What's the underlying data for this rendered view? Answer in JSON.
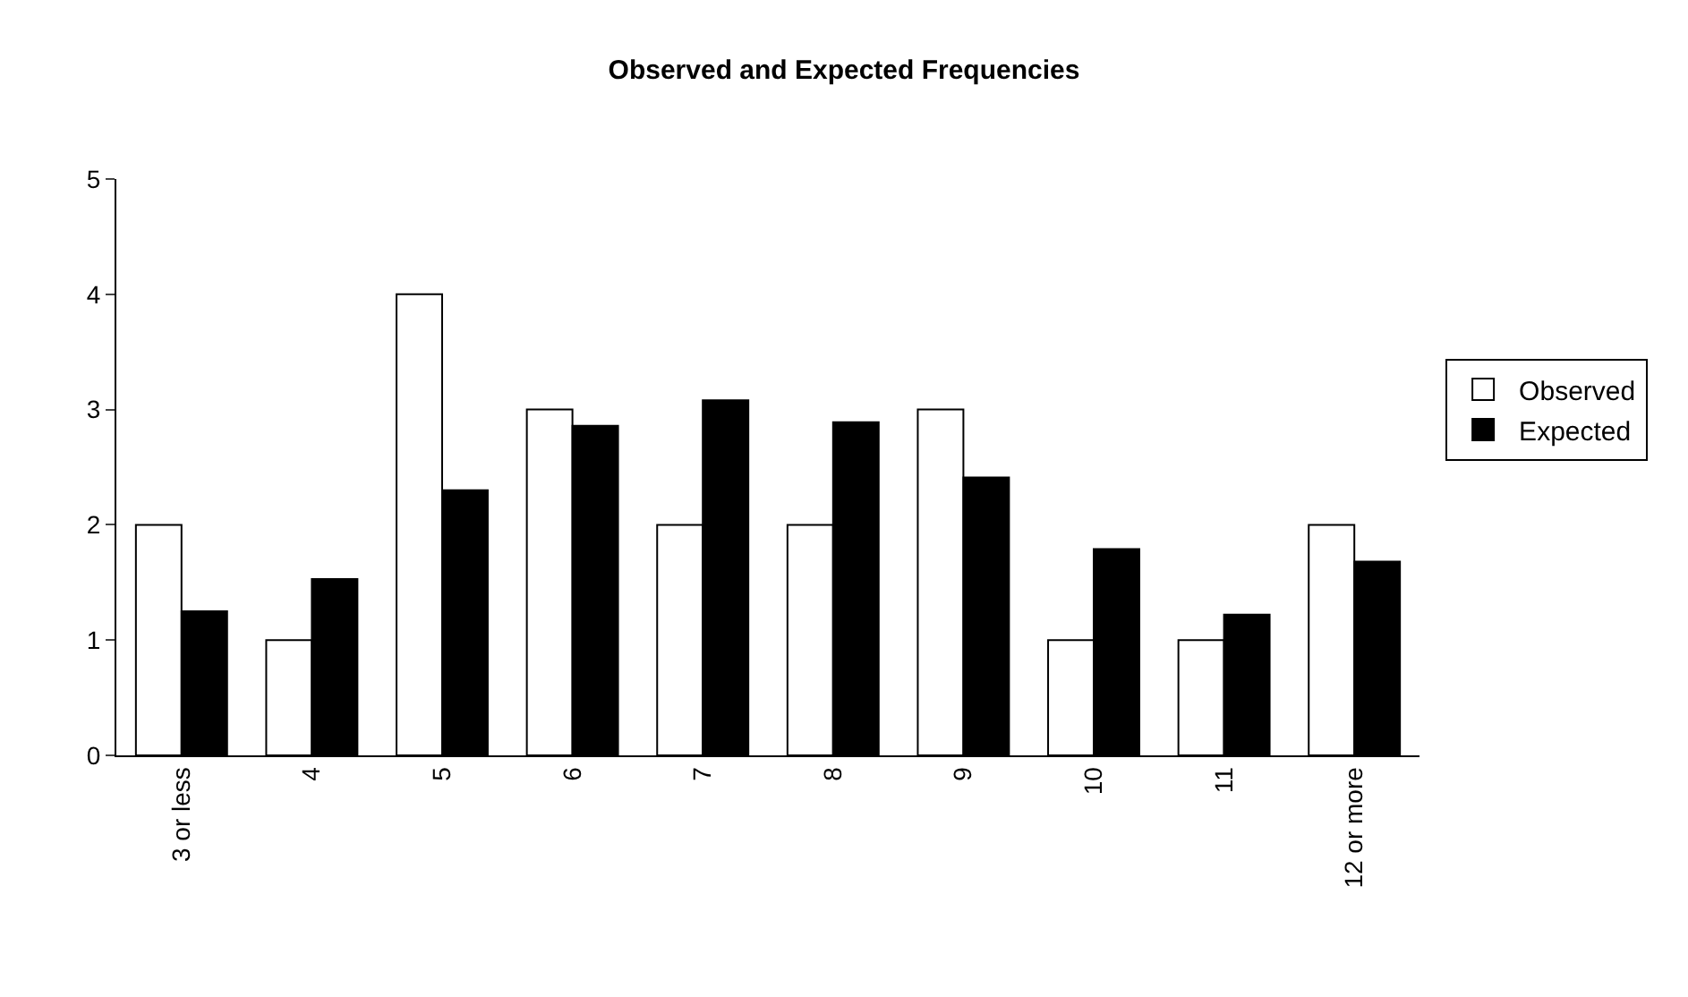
{
  "chart_data": {
    "type": "bar",
    "title": "Observed and Expected Frequencies",
    "categories": [
      "3 or less",
      "4",
      "5",
      "6",
      "7",
      "8",
      "9",
      "10",
      "11",
      "12 or more"
    ],
    "series": [
      {
        "name": "Observed",
        "color": "#ffffff",
        "values": [
          2,
          1,
          4,
          3,
          2,
          2,
          3,
          1,
          1,
          2
        ]
      },
      {
        "name": "Expected",
        "color": "#000000",
        "values": [
          1.25,
          1.53,
          2.3,
          2.86,
          3.08,
          2.89,
          2.41,
          1.79,
          1.22,
          1.68
        ]
      }
    ],
    "ylim": [
      0,
      5
    ],
    "yticks": [
      0,
      1,
      2,
      3,
      4,
      5
    ],
    "grid": false,
    "legend": "right"
  }
}
